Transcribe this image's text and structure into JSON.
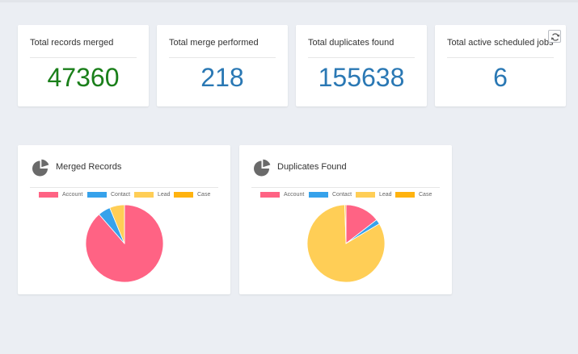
{
  "stats": [
    {
      "label": "Total records merged",
      "value": "47360",
      "color": "#1a7f1a"
    },
    {
      "label": "Total merge performed",
      "value": "218",
      "color": "#2a78b4"
    },
    {
      "label": "Total duplicates found",
      "value": "155638",
      "color": "#2a78b4"
    },
    {
      "label": "Total active scheduled jobs",
      "value": "6",
      "color": "#2a78b4"
    }
  ],
  "refresh": {
    "icon": "refresh-icon"
  },
  "legend": [
    {
      "label": "Account",
      "color": "#ff6384"
    },
    {
      "label": "Contact",
      "color": "#36a2eb"
    },
    {
      "label": "Lead",
      "color": "#ffce56"
    },
    {
      "label": "Case",
      "color": "#ffb30f"
    }
  ],
  "charts": [
    {
      "title": "Merged Records",
      "icon": "pie-chart-icon"
    },
    {
      "title": "Duplicates Found",
      "icon": "pie-chart-icon"
    }
  ],
  "chart_data": [
    {
      "type": "pie",
      "title": "Merged Records",
      "categories": [
        "Account",
        "Contact",
        "Lead",
        "Case"
      ],
      "values": [
        85.5,
        5,
        6,
        0
      ],
      "legend_position": "top"
    },
    {
      "type": "pie",
      "title": "Duplicates Found",
      "categories": [
        "Account",
        "Contact",
        "Lead",
        "Case"
      ],
      "values": [
        14.5,
        2,
        83,
        0.5
      ],
      "legend_position": "top"
    }
  ]
}
